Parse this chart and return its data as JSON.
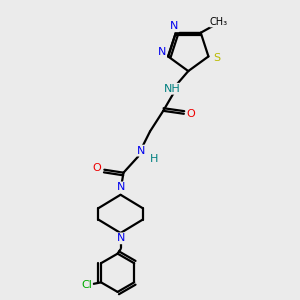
{
  "bg_color": "#ebebeb",
  "bond_color": "#000000",
  "atom_colors": {
    "N": "#0000ee",
    "O": "#ee0000",
    "S": "#bbbb00",
    "Cl": "#00aa00",
    "C": "#000000",
    "H": "#008080"
  },
  "lw": 1.6
}
